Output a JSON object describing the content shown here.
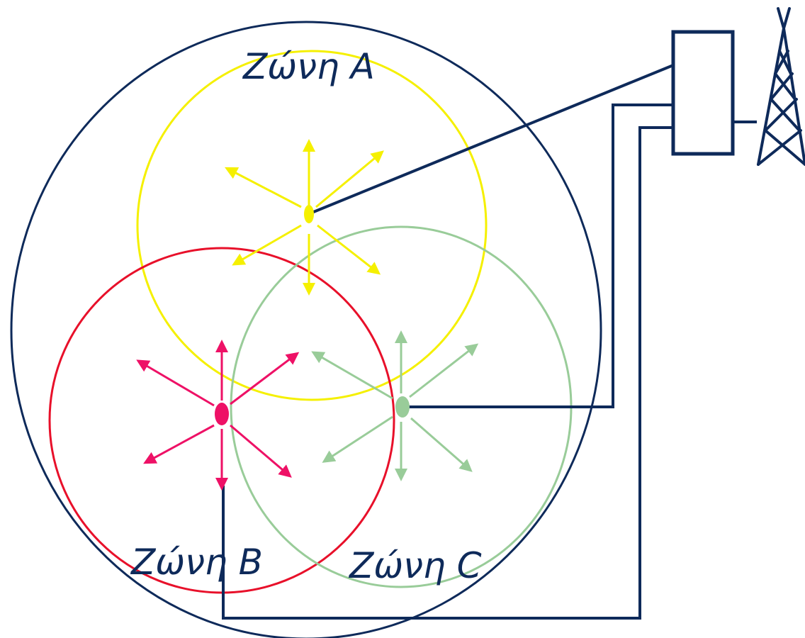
{
  "diagram": {
    "zones": [
      {
        "id": "a",
        "label": "Ζώνη A",
        "color": "#f5f000"
      },
      {
        "id": "b",
        "label": "Ζώνη B",
        "color": "#e8102a"
      },
      {
        "id": "c",
        "label": "Ζώνη C",
        "color": "#99cc99"
      }
    ],
    "colors": {
      "outline": "#0e2a5a",
      "emitter_a": "#f5f000",
      "emitter_b": "#ee1166",
      "emitter_c": "#99cc99",
      "background": "#ffffff"
    },
    "icons": [
      "controller-box-icon",
      "antenna-tower-icon"
    ]
  }
}
